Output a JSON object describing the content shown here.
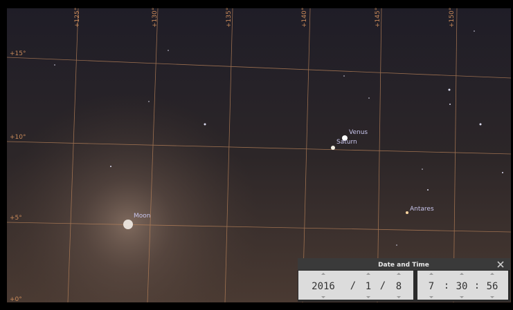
{
  "sky": {
    "meridian_labels": [
      "+125°",
      "+130°",
      "+135°",
      "+140°",
      "+145°",
      "+150°"
    ],
    "parallel_labels": [
      "+15°",
      "+10°",
      "+5°",
      "+0°"
    ],
    "objects": [
      "Venus",
      "Saturn",
      "Antares",
      "Moon"
    ]
  },
  "date_time_panel": {
    "title": "Date and Time",
    "date": [
      "2016",
      "/",
      "1",
      "/",
      "8"
    ],
    "time": [
      "7",
      ":",
      "30",
      ":",
      "56"
    ]
  }
}
